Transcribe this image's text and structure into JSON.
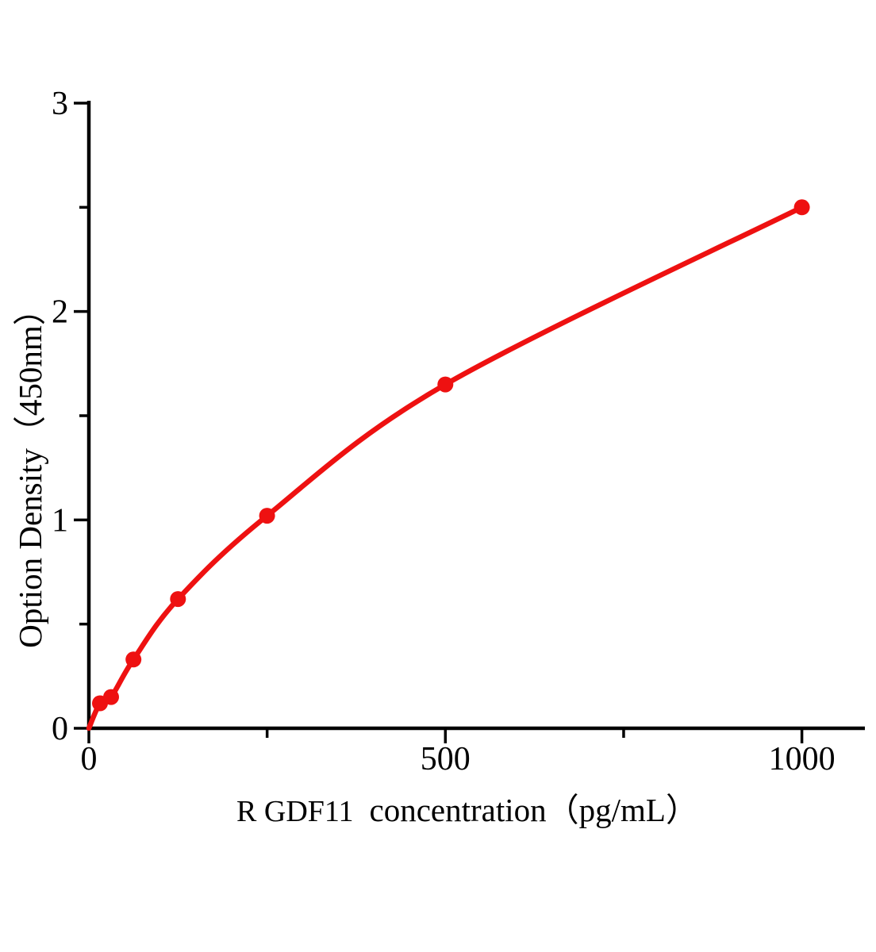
{
  "figure": {
    "background": "#ffffff"
  },
  "chart_data": {
    "type": "line",
    "subtype": "elisa-standard-curve",
    "title": "",
    "xlabel": "R GDF11  concentration（pg/mL）",
    "xlabel_prefix": "R GDF11",
    "xlabel_main": "concentration（pg/mL）",
    "ylabel": "Option Density（450nm）",
    "x": [
      15.6,
      31.2,
      62.5,
      125,
      250,
      500,
      1000
    ],
    "y": [
      0.12,
      0.15,
      0.33,
      0.62,
      1.02,
      1.65,
      2.5
    ],
    "curve_start": [
      0,
      0
    ],
    "xlim": [
      0,
      1085
    ],
    "ylim": [
      0,
      3
    ],
    "x_major_ticks": [
      0,
      500,
      1000
    ],
    "x_minor_ticks": [
      250,
      750
    ],
    "y_major_ticks": [
      0,
      1,
      2,
      3
    ],
    "y_minor_ticks": [
      0.5,
      1.5,
      2.5
    ],
    "grid": false,
    "legend": "none",
    "marker": "circle",
    "line_color": "#ee1111",
    "marker_color": "#ee1111",
    "axis_color": "#000000"
  }
}
